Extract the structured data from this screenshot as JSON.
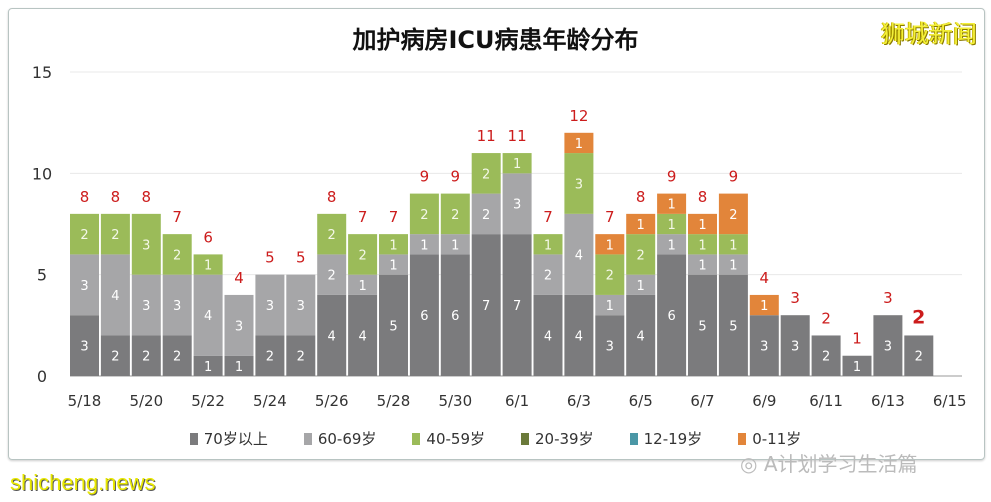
{
  "title": "加护病房ICU病患年龄分布",
  "watermark": "狮城新闻",
  "footer": "shicheng.news",
  "wechat": "A计划学习生活篇",
  "colors": {
    "70+": "#7b7b7d",
    "60-69": "#a6a6a8",
    "40-59": "#9bbb59",
    "20-39": "#6b7a3a",
    "12-19": "#4a97a6",
    "0-11": "#e2853a",
    "total_label": "#cc1c1c"
  },
  "chart_data": {
    "type": "bar",
    "stacked": true,
    "title": "加护病房ICU病患年龄分布",
    "ylim": [
      0,
      15
    ],
    "yticks": [
      0,
      5,
      10,
      15
    ],
    "grid": true,
    "legend_position": "bottom",
    "categories": [
      "5/18",
      "5/19",
      "5/20",
      "5/21",
      "5/22",
      "5/23",
      "5/24",
      "5/25",
      "5/26",
      "5/27",
      "5/28",
      "5/29",
      "5/30",
      "5/31",
      "6/1",
      "6/2",
      "6/3",
      "6/4",
      "6/5",
      "6/6",
      "6/7",
      "6/8",
      "6/9",
      "6/10",
      "6/11",
      "6/12",
      "6/13",
      "6/14",
      "6/15"
    ],
    "tick_labels": [
      "5/18",
      "5/20",
      "5/22",
      "5/24",
      "5/26",
      "5/28",
      "5/30",
      "6/1",
      "6/3",
      "6/5",
      "6/7",
      "6/9",
      "6/11",
      "6/13",
      "6/15"
    ],
    "series": [
      {
        "name": "70岁以上",
        "key": "70+",
        "values": [
          3,
          2,
          2,
          2,
          1,
          1,
          2,
          2,
          4,
          4,
          5,
          6,
          6,
          7,
          7,
          4,
          4,
          3,
          4,
          6,
          5,
          5,
          3,
          3,
          2,
          1,
          3,
          2,
          0
        ]
      },
      {
        "name": "60-69岁",
        "key": "60-69",
        "values": [
          3,
          4,
          3,
          3,
          4,
          3,
          3,
          3,
          2,
          1,
          1,
          1,
          1,
          2,
          3,
          2,
          4,
          1,
          1,
          1,
          1,
          1,
          0,
          0,
          0,
          0,
          0,
          0,
          0
        ]
      },
      {
        "name": "40-59岁",
        "key": "40-59",
        "values": [
          2,
          2,
          3,
          2,
          1,
          0,
          0,
          0,
          2,
          2,
          1,
          2,
          2,
          2,
          1,
          1,
          3,
          2,
          2,
          1,
          1,
          1,
          0,
          0,
          0,
          0,
          0,
          0,
          0
        ]
      },
      {
        "name": "20-39岁",
        "key": "20-39",
        "values": [
          0,
          0,
          0,
          0,
          0,
          0,
          0,
          0,
          0,
          0,
          0,
          0,
          0,
          0,
          0,
          0,
          0,
          0,
          0,
          0,
          0,
          0,
          0,
          0,
          0,
          0,
          0,
          0,
          0
        ]
      },
      {
        "name": "12-19岁",
        "key": "12-19",
        "values": [
          0,
          0,
          0,
          0,
          0,
          0,
          0,
          0,
          0,
          0,
          0,
          0,
          0,
          0,
          0,
          0,
          0,
          0,
          0,
          0,
          0,
          0,
          0,
          0,
          0,
          0,
          0,
          0,
          0
        ]
      },
      {
        "name": "0-11岁",
        "key": "0-11",
        "values": [
          0,
          0,
          0,
          0,
          0,
          0,
          0,
          0,
          0,
          0,
          0,
          0,
          0,
          0,
          0,
          0,
          1,
          1,
          1,
          1,
          1,
          2,
          1,
          0,
          0,
          0,
          0,
          0,
          0
        ]
      }
    ],
    "totals": [
      8,
      8,
      8,
      7,
      6,
      4,
      5,
      5,
      8,
      7,
      7,
      9,
      9,
      11,
      11,
      7,
      12,
      7,
      8,
      9,
      8,
      9,
      4,
      3,
      2,
      1,
      3,
      2,
      null
    ]
  }
}
